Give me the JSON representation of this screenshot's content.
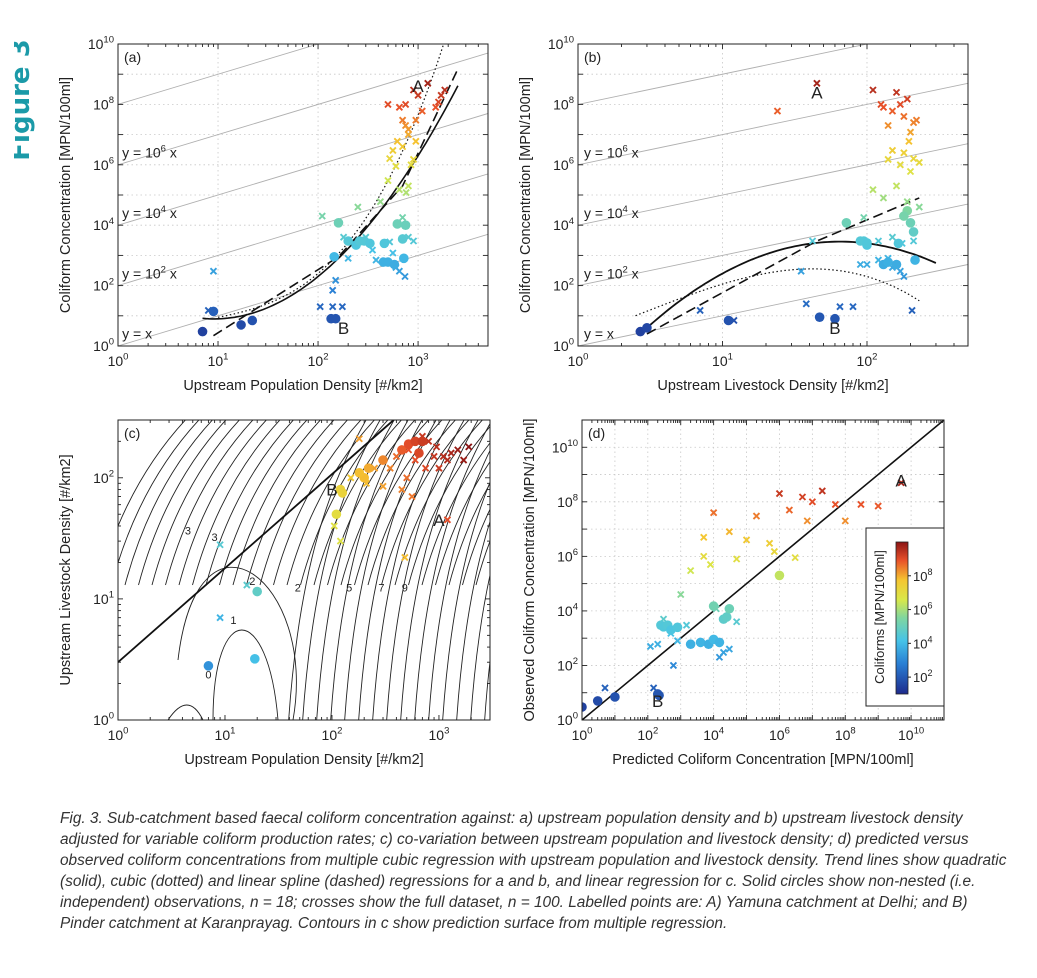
{
  "figure_label": "Figure 3",
  "caption": "Fig. 3. Sub-catchment based faecal coliform concentration against: a) upstream population density and b) upstream livestock density adjusted for variable coliform production rates; c) co-variation between upstream population and livestock density; d) predicted versus observed coliform concentrations from multiple cubic regression with upstream population and livestock density. Trend lines show quadratic (solid), cubic (dotted) and linear spline (dashed) regressions for a and b, and linear regression for c. Solid circles show non-nested (i.e. independent) observations, n = 18; crosses show the full dataset, n = 100. Labelled points are: A) Yamuna catchment at Delhi; and B) Pinder catchment at Karanprayag. Contours in c show prediction surface from multiple regression.",
  "chart_data": [
    {
      "panel": "(a)",
      "type": "scatter",
      "xlabel": "Upstream Population Density [#/km2]",
      "ylabel": "Coliform Concentration [MPN/100ml]",
      "x_scale": "log",
      "y_scale": "log",
      "xlim": [
        1,
        5000
      ],
      "ylim": [
        1,
        10000000000
      ],
      "x_ticks": [
        "10^0",
        "10^1",
        "10^2",
        "10^3"
      ],
      "y_ticks": [
        "10^0",
        "10^2",
        "10^4",
        "10^6",
        "10^8",
        "10^10"
      ],
      "grid": true,
      "reference_line_labels": [
        "y = x",
        "y = 10^2 x",
        "y = 10^4 x",
        "y = 10^6 x"
      ],
      "point_labels": [
        {
          "text": "A",
          "x": 1000,
          "y": 400000000
        },
        {
          "text": "B",
          "x": 180,
          "y": 4
        }
      ],
      "trend_lines": [
        "quadratic (solid)",
        "cubic (dotted)",
        "linear spline (dashed)"
      ],
      "circles": [
        [
          7,
          3
        ],
        [
          9,
          14
        ],
        [
          17,
          5
        ],
        [
          22,
          7
        ],
        [
          135,
          8
        ],
        [
          150,
          8
        ],
        [
          145,
          900
        ],
        [
          200,
          3000
        ],
        [
          240,
          2200
        ],
        [
          260,
          3000
        ],
        [
          290,
          3000
        ],
        [
          330,
          2500
        ],
        [
          450,
          600
        ],
        [
          500,
          600
        ],
        [
          580,
          500
        ],
        [
          620,
          11000
        ],
        [
          700,
          3500
        ],
        [
          720,
          800
        ],
        [
          160,
          12000
        ],
        [
          460,
          2500
        ],
        [
          750,
          10000
        ]
      ],
      "crosses": [
        [
          9,
          300
        ],
        [
          8,
          15
        ],
        [
          105,
          20
        ],
        [
          140,
          20
        ],
        [
          175,
          20
        ],
        [
          140,
          70
        ],
        [
          150,
          150
        ],
        [
          200,
          800
        ],
        [
          350,
          1500
        ],
        [
          380,
          700
        ],
        [
          520,
          2800
        ],
        [
          560,
          1200
        ],
        [
          600,
          400
        ],
        [
          650,
          300
        ],
        [
          740,
          200
        ],
        [
          800,
          4000
        ],
        [
          900,
          3000
        ],
        [
          110,
          20000
        ],
        [
          180,
          4000
        ],
        [
          250,
          40000
        ],
        [
          300,
          4000
        ],
        [
          420,
          60000
        ],
        [
          700,
          18000
        ],
        [
          500,
          300000
        ],
        [
          520,
          1600000
        ],
        [
          560,
          3000000
        ],
        [
          600,
          900000
        ],
        [
          620,
          6000000
        ],
        [
          650,
          150000
        ],
        [
          700,
          4000000
        ],
        [
          760,
          120000
        ],
        [
          800,
          200000
        ],
        [
          850,
          1000000
        ],
        [
          900,
          1500000
        ],
        [
          950,
          6000000
        ],
        [
          950,
          30000000
        ],
        [
          700,
          30000000
        ],
        [
          750,
          20000000
        ],
        [
          800,
          10000000
        ],
        [
          500,
          100000000
        ],
        [
          650,
          80000000
        ],
        [
          750,
          100000000
        ],
        [
          800,
          15000000
        ],
        [
          900,
          300000000
        ],
        [
          1000,
          200000000
        ],
        [
          1100,
          60000000
        ],
        [
          1250,
          500000000
        ],
        [
          1500,
          80000000
        ],
        [
          1600,
          120000000
        ],
        [
          1700,
          200000000
        ],
        [
          1850,
          300000000
        ]
      ]
    },
    {
      "panel": "(b)",
      "type": "scatter",
      "xlabel": "Upstream Livestock Density [#/km2]",
      "ylabel": "Coliform Concentration [MPN/100ml]",
      "x_scale": "log",
      "y_scale": "log",
      "xlim": [
        1,
        500
      ],
      "ylim": [
        1,
        10000000000
      ],
      "x_ticks": [
        "10^0",
        "10^1",
        "10^2"
      ],
      "y_ticks": [
        "10^0",
        "10^2",
        "10^4",
        "10^6",
        "10^8",
        "10^10"
      ],
      "grid": true,
      "reference_line_labels": [
        "y = x",
        "y = 10^2 x",
        "y = 10^4 x",
        "y = 10^6 x"
      ],
      "point_labels": [
        {
          "text": "A",
          "x": 45,
          "y": 250000000
        },
        {
          "text": "B",
          "x": 60,
          "y": 4
        }
      ],
      "trend_lines": [
        "quadratic (solid)",
        "cubic (dotted)",
        "linear spline (dashed)"
      ],
      "circles": [
        [
          2.7,
          3
        ],
        [
          3,
          4
        ],
        [
          11,
          7
        ],
        [
          47,
          9
        ],
        [
          60,
          8
        ],
        [
          72,
          12000
        ],
        [
          90,
          3000
        ],
        [
          95,
          3000
        ],
        [
          100,
          2200
        ],
        [
          130,
          500
        ],
        [
          140,
          600
        ],
        [
          160,
          500
        ],
        [
          190,
          30000
        ],
        [
          200,
          12000
        ],
        [
          210,
          6000
        ],
        [
          215,
          700
        ],
        [
          100,
          2600
        ],
        [
          165,
          2500
        ],
        [
          180,
          20000
        ]
      ],
      "crosses": [
        [
          7,
          15
        ],
        [
          12,
          7
        ],
        [
          38,
          25
        ],
        [
          35,
          300
        ],
        [
          42,
          3000
        ],
        [
          80,
          20
        ],
        [
          90,
          500
        ],
        [
          100,
          500
        ],
        [
          120,
          700
        ],
        [
          140,
          800
        ],
        [
          150,
          400
        ],
        [
          170,
          300
        ],
        [
          180,
          200
        ],
        [
          205,
          15
        ],
        [
          65,
          20
        ],
        [
          95,
          18000
        ],
        [
          120,
          3000
        ],
        [
          150,
          4000
        ],
        [
          175,
          2500
        ],
        [
          190,
          60000
        ],
        [
          210,
          3000
        ],
        [
          230,
          40000
        ],
        [
          110,
          150000
        ],
        [
          130,
          80000
        ],
        [
          140,
          1500000
        ],
        [
          150,
          3000000
        ],
        [
          160,
          200000
        ],
        [
          170,
          1000000
        ],
        [
          180,
          2500000
        ],
        [
          195,
          6000000
        ],
        [
          200,
          600000
        ],
        [
          210,
          1600000
        ],
        [
          220,
          30000000
        ],
        [
          230,
          1200000
        ],
        [
          110,
          300000000
        ],
        [
          125,
          100000000
        ],
        [
          130,
          80000000
        ],
        [
          140,
          20000000
        ],
        [
          150,
          60000000
        ],
        [
          160,
          250000000
        ],
        [
          170,
          100000000
        ],
        [
          180,
          40000000
        ],
        [
          190,
          150000000
        ],
        [
          200,
          12000000
        ],
        [
          210,
          25000000
        ],
        [
          24,
          60000000
        ],
        [
          45,
          500000000
        ]
      ]
    },
    {
      "panel": "(c)",
      "type": "scatter",
      "xlabel": "Upstream Population Density [#/km2]",
      "ylabel": "Upstream Livestock Density [#/km2]",
      "x_scale": "log",
      "y_scale": "log",
      "xlim": [
        1,
        3000
      ],
      "ylim": [
        1,
        300
      ],
      "x_ticks": [
        "10^0",
        "10^1",
        "10^2",
        "10^3"
      ],
      "y_ticks": [
        "10^0",
        "10^1",
        "10^2"
      ],
      "grid": false,
      "contour_labels": [
        "0",
        "1",
        "2",
        "2",
        "3",
        "3",
        "5",
        "7",
        "9"
      ],
      "point_labels": [
        {
          "text": "A",
          "x": 1000,
          "y": 45
        },
        {
          "text": "B",
          "x": 100,
          "y": 80
        }
      ],
      "trend_lines": [
        "linear regression (solid)"
      ],
      "circles": [
        [
          7,
          2.8
        ],
        [
          19,
          3.2
        ],
        [
          20,
          11.5
        ],
        [
          110,
          50
        ],
        [
          120,
          80
        ],
        [
          125,
          75
        ],
        [
          220,
          120
        ],
        [
          200,
          100
        ],
        [
          180,
          110
        ],
        [
          300,
          140
        ],
        [
          450,
          170
        ],
        [
          520,
          190
        ],
        [
          600,
          200
        ],
        [
          650,
          160
        ],
        [
          700,
          200
        ]
      ],
      "crosses": [
        [
          9,
          28
        ],
        [
          9,
          7
        ],
        [
          16,
          13
        ],
        [
          105,
          40
        ],
        [
          120,
          30
        ],
        [
          150,
          100
        ],
        [
          180,
          210
        ],
        [
          210,
          90
        ],
        [
          250,
          120
        ],
        [
          300,
          85
        ],
        [
          350,
          120
        ],
        [
          400,
          150
        ],
        [
          450,
          80
        ],
        [
          500,
          100
        ],
        [
          520,
          170
        ],
        [
          560,
          70
        ],
        [
          600,
          140
        ],
        [
          650,
          160
        ],
        [
          700,
          220
        ],
        [
          750,
          120
        ],
        [
          800,
          200
        ],
        [
          900,
          150
        ],
        [
          950,
          180
        ],
        [
          1000,
          120
        ],
        [
          1100,
          150
        ],
        [
          1200,
          140
        ],
        [
          1300,
          160
        ],
        [
          1500,
          170
        ],
        [
          1700,
          140
        ],
        [
          1900,
          180
        ],
        [
          480,
          22
        ],
        [
          1200,
          45
        ]
      ]
    },
    {
      "panel": "(d)",
      "type": "scatter",
      "xlabel": "Predicted Coliform Concentration [MPN/100ml]",
      "ylabel": "Observed Coliform Concentration [MPN/100ml]",
      "x_scale": "log",
      "y_scale": "log",
      "xlim": [
        1,
        100000000000
      ],
      "ylim": [
        1,
        100000000000
      ],
      "x_ticks": [
        "10^0",
        "10^2",
        "10^4",
        "10^6",
        "10^8",
        "10^10"
      ],
      "y_ticks": [
        "10^0",
        "10^2",
        "10^4",
        "10^6",
        "10^8",
        "10^10"
      ],
      "grid": true,
      "point_labels": [
        {
          "text": "A",
          "x": 5000000000,
          "y": 600000000
        },
        {
          "text": "B",
          "x": 200,
          "y": 5
        }
      ],
      "trend_lines": [
        "1:1 line"
      ],
      "colorbar": {
        "label": "Coliforms [MPN/100ml]",
        "ticks": [
          "10^2",
          "10^4",
          "10^6",
          "10^8"
        ],
        "range": [
          1,
          1000000000
        ]
      },
      "circles": [
        [
          1,
          3
        ],
        [
          3,
          5
        ],
        [
          10,
          7
        ],
        [
          200,
          9
        ],
        [
          220,
          8
        ],
        [
          250,
          3000
        ],
        [
          300,
          2600
        ],
        [
          400,
          3000
        ],
        [
          500,
          2000
        ],
        [
          800,
          2500
        ],
        [
          2000,
          600
        ],
        [
          4000,
          700
        ],
        [
          7000,
          600
        ],
        [
          10000,
          900
        ],
        [
          15000,
          700
        ],
        [
          20000,
          5000
        ],
        [
          10000,
          15000
        ],
        [
          25000,
          6000
        ],
        [
          30000,
          12000
        ],
        [
          1000000,
          200000
        ]
      ],
      "crosses": [
        [
          5,
          15
        ],
        [
          150,
          15
        ],
        [
          120,
          500
        ],
        [
          200,
          600
        ],
        [
          300,
          5000
        ],
        [
          500,
          1500
        ],
        [
          600,
          100
        ],
        [
          800,
          800
        ],
        [
          1000,
          40000
        ],
        [
          1500,
          3000
        ],
        [
          2000,
          300000
        ],
        [
          5000,
          1000000
        ],
        [
          8000,
          500000
        ],
        [
          12000,
          12000
        ],
        [
          15000,
          200
        ],
        [
          20000,
          300
        ],
        [
          30000,
          400
        ],
        [
          50000,
          4000
        ],
        [
          5000,
          5000000
        ],
        [
          10000,
          40000000
        ],
        [
          30000,
          8000000
        ],
        [
          50000,
          800000
        ],
        [
          100000,
          4000000
        ],
        [
          200000,
          30000000
        ],
        [
          500000,
          3000000
        ],
        [
          700000,
          1500000
        ],
        [
          1000000,
          200000000
        ],
        [
          2000000,
          50000000
        ],
        [
          3000000,
          900000
        ],
        [
          5000000,
          150000000
        ],
        [
          7000000,
          20000000
        ],
        [
          10000000,
          100000000
        ],
        [
          20000000,
          250000000
        ],
        [
          50000000,
          80000000
        ],
        [
          100000000,
          20000000
        ],
        [
          300000000,
          80000000
        ],
        [
          1000000000,
          70000000
        ],
        [
          5000000000,
          500000000
        ]
      ]
    }
  ]
}
